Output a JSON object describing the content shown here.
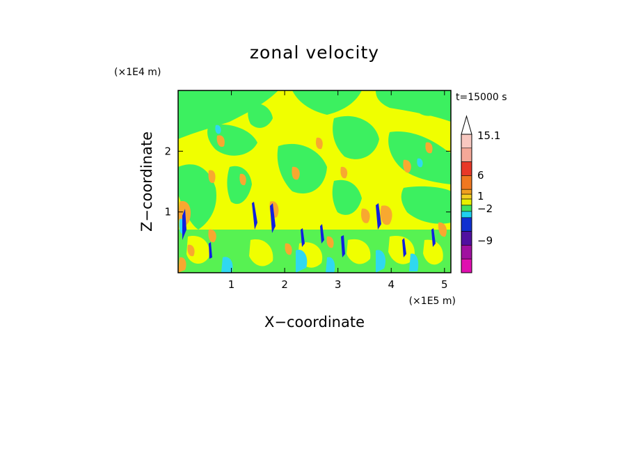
{
  "chart_data": {
    "type": "heatmap",
    "title": "zonal velocity",
    "xlabel": "X−coordinate",
    "ylabel": "Z−coordinate",
    "x_unit": "(×1E5 m)",
    "y_unit": "(×1E4 m)",
    "time_label": "t=15000 s",
    "xlim": [
      0,
      5.12
    ],
    "ylim": [
      0,
      3.0
    ],
    "x_ticks": [
      "1",
      "2",
      "3",
      "4",
      "5"
    ],
    "y_ticks": [
      "1",
      "2"
    ],
    "colorbar": {
      "labels": [
        "15.1",
        "6",
        "1",
        "−2",
        "−9"
      ],
      "levels_top_to_bottom": [
        {
          "color": "#f8c8c0"
        },
        {
          "color": "#f4a898"
        },
        {
          "color": "#e83828"
        },
        {
          "color": "#f07820"
        },
        {
          "color": "#f0a020"
        },
        {
          "color": "#f4d020"
        },
        {
          "color": "#e8f000"
        },
        {
          "color": "#40e060"
        },
        {
          "color": "#20d0f0"
        },
        {
          "color": "#1030d0"
        },
        {
          "color": "#5010a0"
        },
        {
          "color": "#a010a0"
        },
        {
          "color": "#e010b0"
        }
      ]
    },
    "field_colors": {
      "yellow": "#f0ff00",
      "green": "#3cf060",
      "orange": "#f8a830",
      "cyan": "#30d8f0",
      "blue": "#1020e0"
    }
  }
}
